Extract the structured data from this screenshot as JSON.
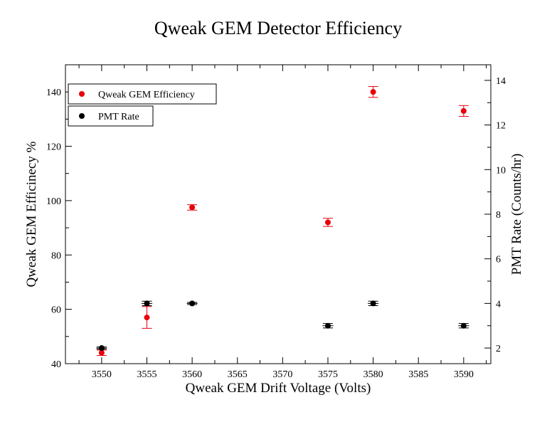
{
  "chart_data": {
    "type": "scatter",
    "title": "Qweak GEM Detector Efficiency",
    "xlabel": "Qweak GEM Drift Voltage (Volts)",
    "ylabel": "Qweak GEM Efficinecy %",
    "y2label": "PMT Rate (Counts/hr)",
    "xlim": [
      3546,
      3593
    ],
    "ylim": [
      40,
      150
    ],
    "y2lim": [
      1.3,
      14.7
    ],
    "x_ticks": [
      3550,
      3555,
      3560,
      3565,
      3570,
      3575,
      3580,
      3585,
      3590
    ],
    "y_ticks": [
      40,
      60,
      80,
      100,
      120,
      140
    ],
    "y2_ticks": [
      2,
      4,
      6,
      8,
      10,
      12,
      14
    ],
    "legend_position": "top-left",
    "series": [
      {
        "name": "Qweak GEM Efficiency",
        "axis": "left",
        "color": "#e8000b",
        "points": [
          {
            "x": 3550,
            "y": 44.0,
            "yerr": 1.0,
            "xerr": 0
          },
          {
            "x": 3555,
            "y": 57.0,
            "yerr": 4.0,
            "xerr": 0
          },
          {
            "x": 3560,
            "y": 97.5,
            "yerr": 1.0,
            "xerr": 0
          },
          {
            "x": 3575,
            "y": 92.0,
            "yerr": 1.5,
            "xerr": 0
          },
          {
            "x": 3580,
            "y": 140.0,
            "yerr": 2.0,
            "xerr": 0
          },
          {
            "x": 3590,
            "y": 133.0,
            "yerr": 2.0,
            "xerr": 0
          }
        ]
      },
      {
        "name": "PMT Rate",
        "axis": "right",
        "color": "#000000",
        "points": [
          {
            "x": 3550,
            "y": 2.0,
            "yerr": 0.05,
            "xerr": 0.6
          },
          {
            "x": 3555,
            "y": 4.0,
            "yerr": 0.1,
            "xerr": 0.6
          },
          {
            "x": 3560,
            "y": 4.0,
            "yerr": 0.05,
            "xerr": 0.6
          },
          {
            "x": 3575,
            "y": 3.0,
            "yerr": 0.1,
            "xerr": 0.6
          },
          {
            "x": 3580,
            "y": 4.0,
            "yerr": 0.1,
            "xerr": 0.6
          },
          {
            "x": 3590,
            "y": 3.0,
            "yerr": 0.1,
            "xerr": 0.6
          }
        ]
      }
    ]
  }
}
